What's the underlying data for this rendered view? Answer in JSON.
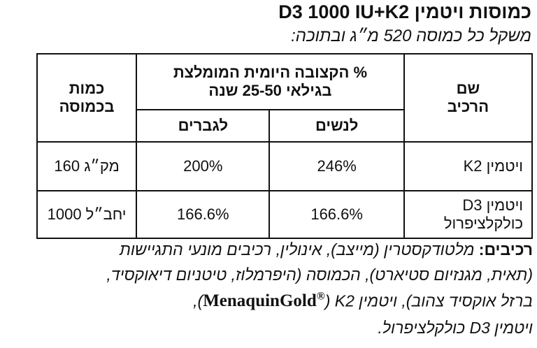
{
  "header": {
    "title": "כמוסות ויטמין D3 1000 IU+K2",
    "subtitle": "משקל כל כמוסה 520 מ״ג ובתוכה:"
  },
  "table": {
    "headers": {
      "name": [
        "שם",
        "הרכיב"
      ],
      "rda": [
        "% הקצובה היומית המומלצת",
        "בגילאי 25-50 שנה"
      ],
      "women": "לנשים",
      "men": "לגברים",
      "amount": [
        "כמות",
        "בכמוסה"
      ]
    },
    "rows": [
      {
        "name": [
          "ויטמין K2"
        ],
        "women": "246%",
        "men": "200%",
        "amount": "160 מק״ג"
      },
      {
        "name": [
          "ויטמין D3",
          "כולקלציפרול"
        ],
        "women": "166.6%",
        "men": "166.6%",
        "amount": "1000 יחב״ל"
      }
    ]
  },
  "ingredients": {
    "label": "רכיבים:",
    "line1": "מלטודקסטרין (מייצב), אינולין, רכיבים מונעי התגיישות",
    "line2": "(תאית, מגנזיום סטיארט), הכמוסה (היפרמלוז, טיטניום דיאוקסיד,",
    "line3_before": "ברזל אוקסיד צהוב), ויטמין K2 (",
    "brand": "MenaquinGold",
    "brand_mark": "®",
    "line3_after": "),",
    "line4": "ויטמין D3 כולקלציפרול."
  }
}
